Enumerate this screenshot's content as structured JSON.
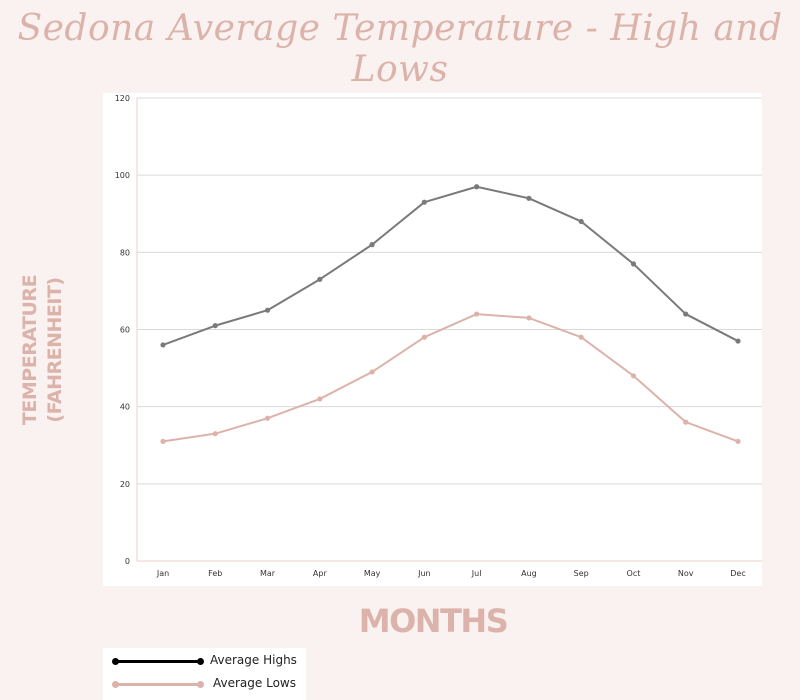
{
  "chart_data": {
    "type": "line",
    "title": "Sedona Average Temperature - High and Lows",
    "ylabel_line1": "TEMPERATURE",
    "ylabel_line2": "(FAHRENHEIT)",
    "xlabel": "MONTHS",
    "categories": [
      "Jan",
      "Feb",
      "Mar",
      "Apr",
      "May",
      "Jun",
      "Jul",
      "Aug",
      "Sep",
      "Oct",
      "Nov",
      "Dec"
    ],
    "ylim": [
      0,
      120
    ],
    "yticks": [
      0,
      20,
      40,
      60,
      80,
      100,
      120
    ],
    "grid": true,
    "legend_position": "bottom-left",
    "series": [
      {
        "name": "Average Highs",
        "values": [
          56,
          61,
          65,
          73,
          82,
          93,
          97,
          94,
          88,
          77,
          64,
          57
        ],
        "color": "#7a7a7a",
        "legend_color": "#000000"
      },
      {
        "name": "Average Lows",
        "values": [
          31,
          33,
          37,
          42,
          49,
          58,
          64,
          63,
          58,
          48,
          36,
          31
        ],
        "color": "#dcb3aa",
        "legend_color": "#dcb3aa"
      }
    ]
  },
  "colors": {
    "background": "#f9f2f0",
    "accent": "#dcb3aa",
    "grid": "#d9d9d9"
  }
}
